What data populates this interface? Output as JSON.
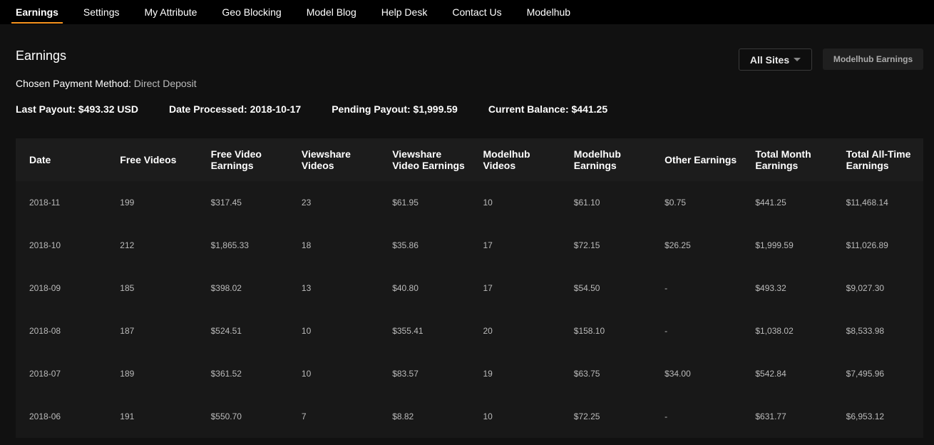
{
  "nav": {
    "tabs": [
      {
        "label": "Earnings",
        "active": true
      },
      {
        "label": "Settings"
      },
      {
        "label": "My Attribute"
      },
      {
        "label": "Geo Blocking"
      },
      {
        "label": "Model Blog"
      },
      {
        "label": "Help Desk"
      },
      {
        "label": "Contact Us"
      },
      {
        "label": "Modelhub"
      }
    ]
  },
  "page": {
    "title": "Earnings",
    "payment_label": "Chosen Payment Method:",
    "payment_value": "Direct Deposit",
    "stats": [
      "Last Payout: $493.32 USD",
      "Date Processed: 2018-10-17",
      "Pending Payout: $1,999.59",
      "Current Balance: $441.25"
    ],
    "sites_select": "All Sites",
    "modelhub_button": "Modelhub Earnings"
  },
  "table": {
    "headers": [
      "Date",
      "Free Videos",
      "Free Video Earnings",
      "Viewshare Videos",
      "Viewshare Video Earnings",
      "Modelhub Videos",
      "Modelhub Earnings",
      "Other Earnings",
      "Total Month Earnings",
      "Total All-Time Earnings"
    ],
    "rows": [
      [
        "2018-11",
        "199",
        "$317.45",
        "23",
        "$61.95",
        "10",
        "$61.10",
        "$0.75",
        "$441.25",
        "$11,468.14"
      ],
      [
        "2018-10",
        "212",
        "$1,865.33",
        "18",
        "$35.86",
        "17",
        "$72.15",
        "$26.25",
        "$1,999.59",
        "$11,026.89"
      ],
      [
        "2018-09",
        "185",
        "$398.02",
        "13",
        "$40.80",
        "17",
        "$54.50",
        "-",
        "$493.32",
        "$9,027.30"
      ],
      [
        "2018-08",
        "187",
        "$524.51",
        "10",
        "$355.41",
        "20",
        "$158.10",
        "-",
        "$1,038.02",
        "$8,533.98"
      ],
      [
        "2018-07",
        "189",
        "$361.52",
        "10",
        "$83.57",
        "19",
        "$63.75",
        "$34.00",
        "$542.84",
        "$7,495.96"
      ],
      [
        "2018-06",
        "191",
        "$550.70",
        "7",
        "$8.82",
        "10",
        "$72.25",
        "-",
        "$631.77",
        "$6,953.12"
      ]
    ]
  },
  "colors": {
    "accent": "#f7931e"
  }
}
